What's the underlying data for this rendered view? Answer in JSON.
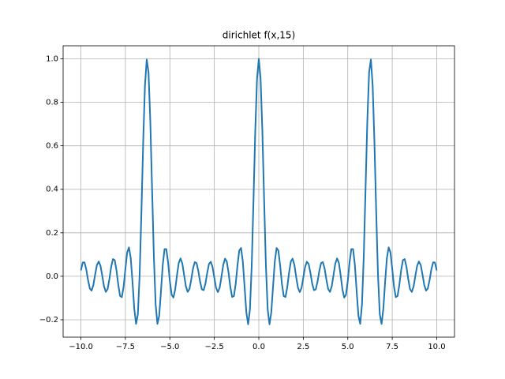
{
  "chart_data": {
    "type": "line",
    "title": "dirichlet f(x,15)",
    "x": [
      -10.0,
      -9.9,
      -9.8,
      -9.7,
      -9.6,
      -9.5,
      -9.4,
      -9.3,
      -9.2,
      -9.1,
      -9.0,
      -8.9,
      -8.8,
      -8.7,
      -8.6,
      -8.5,
      -8.4,
      -8.3,
      -8.2,
      -8.1,
      -8.0,
      -7.9,
      -7.8,
      -7.7,
      -7.6,
      -7.5,
      -7.4,
      -7.3,
      -7.2,
      -7.1,
      -7.0,
      -6.9,
      -6.8,
      -6.7,
      -6.6,
      -6.5,
      -6.4,
      -6.3,
      -6.2,
      -6.1,
      -6.0,
      -5.9,
      -5.8,
      -5.7,
      -5.6,
      -5.5,
      -5.4,
      -5.3,
      -5.2,
      -5.1,
      -5.0,
      -4.9,
      -4.8,
      -4.7,
      -4.6,
      -4.5,
      -4.4,
      -4.3,
      -4.2,
      -4.1,
      -4.0,
      -3.9,
      -3.8,
      -3.7,
      -3.6,
      -3.5,
      -3.4,
      -3.3,
      -3.2,
      -3.1,
      -3.0,
      -2.9,
      -2.8,
      -2.7,
      -2.6,
      -2.5,
      -2.4,
      -2.3,
      -2.2,
      -2.1,
      -2.0,
      -1.9,
      -1.8,
      -1.7,
      -1.6,
      -1.5,
      -1.4,
      -1.3,
      -1.2,
      -1.1,
      -1.0,
      -0.9,
      -0.8,
      -0.7,
      -0.6,
      -0.5,
      -0.4,
      -0.3,
      -0.2,
      -0.1,
      0.0,
      0.1,
      0.2,
      0.3,
      0.4,
      0.5,
      0.6,
      0.7,
      0.8,
      0.9,
      1.0,
      1.1,
      1.2,
      1.3,
      1.4,
      1.5,
      1.6,
      1.7,
      1.8,
      1.9,
      2.0,
      2.1,
      2.2,
      2.3,
      2.4,
      2.5,
      2.6,
      2.7,
      2.8,
      2.9,
      3.0,
      3.1,
      3.2,
      3.3,
      3.4,
      3.5,
      3.6,
      3.7,
      3.8,
      3.9,
      4.0,
      4.1,
      4.2,
      4.3,
      4.4,
      4.5,
      4.6,
      4.7,
      4.8,
      4.9,
      5.0,
      5.1,
      5.2,
      5.3,
      5.4,
      5.5,
      5.6,
      5.7,
      5.8,
      5.9,
      6.0,
      6.1,
      6.2,
      6.3,
      6.4,
      6.5,
      6.6,
      6.7,
      6.8,
      6.9,
      7.0,
      7.1,
      7.2,
      7.3,
      7.4,
      7.5,
      7.6,
      7.7,
      7.8,
      7.9,
      8.0,
      8.1,
      8.2,
      8.3,
      8.4,
      8.5,
      8.6,
      8.7,
      8.8,
      8.9,
      9.0,
      9.1,
      9.2,
      9.3,
      9.4,
      9.5,
      9.6,
      9.7,
      9.8,
      9.9,
      10.0
    ],
    "series": [
      {
        "color": "#1f77b4",
        "values": [
          0.027,
          0.063,
          0.064,
          0.032,
          -0.017,
          -0.056,
          -0.066,
          -0.04,
          0.008,
          0.052,
          0.068,
          0.048,
          0.002,
          -0.047,
          -0.072,
          -0.059,
          -0.013,
          0.043,
          0.079,
          0.074,
          0.027,
          -0.039,
          -0.09,
          -0.096,
          -0.048,
          0.034,
          0.109,
          0.133,
          0.084,
          -0.026,
          -0.15,
          -0.219,
          -0.175,
          0.005,
          0.292,
          0.615,
          0.877,
          0.997,
          0.938,
          0.715,
          0.402,
          0.093,
          -0.129,
          -0.219,
          -0.182,
          -0.069,
          0.052,
          0.125,
          0.125,
          0.063,
          -0.022,
          -0.085,
          -0.098,
          -0.06,
          0.005,
          0.062,
          0.082,
          0.059,
          0.006,
          -0.046,
          -0.072,
          -0.059,
          -0.016,
          0.035,
          0.065,
          0.061,
          0.024,
          -0.025,
          -0.06,
          -0.064,
          -0.033,
          0.016,
          0.057,
          0.067,
          0.042,
          -0.007,
          -0.054,
          -0.073,
          -0.053,
          -0.003,
          0.052,
          0.081,
          0.068,
          0.016,
          -0.05,
          -0.095,
          -0.091,
          -0.035,
          0.049,
          0.118,
          0.13,
          0.069,
          -0.048,
          -0.167,
          -0.221,
          -0.154,
          0.047,
          0.347,
          0.666,
          0.909,
          1,
          0.909,
          0.666,
          0.347,
          0.047,
          -0.154,
          -0.221,
          -0.167,
          -0.048,
          0.069,
          0.13,
          0.118,
          0.049,
          -0.035,
          -0.091,
          -0.095,
          -0.05,
          0.016,
          0.068,
          0.081,
          0.052,
          -0.003,
          -0.053,
          -0.073,
          -0.054,
          -0.007,
          0.042,
          0.067,
          0.057,
          0.016,
          -0.033,
          -0.064,
          -0.06,
          -0.025,
          0.024,
          0.061,
          0.065,
          0.035,
          -0.016,
          -0.059,
          -0.072,
          -0.046,
          0.006,
          0.059,
          0.082,
          0.062,
          0.005,
          -0.06,
          -0.098,
          -0.085,
          -0.022,
          0.063,
          0.125,
          0.125,
          0.052,
          -0.069,
          -0.182,
          -0.219,
          -0.129,
          0.093,
          0.402,
          0.715,
          0.938,
          0.997,
          0.877,
          0.615,
          0.292,
          0.005,
          -0.175,
          -0.219,
          -0.15,
          -0.026,
          0.084,
          0.133,
          0.109,
          0.034,
          -0.048,
          -0.096,
          -0.09,
          -0.039,
          0.027,
          0.074,
          0.079,
          0.043,
          -0.013,
          -0.059,
          -0.072,
          -0.047,
          0.002,
          0.048,
          0.068,
          0.052,
          0.008,
          -0.04,
          -0.066,
          -0.056,
          -0.017,
          0.032,
          0.064,
          0.063,
          0.027
        ]
      }
    ],
    "xlim": [
      -11,
      11
    ],
    "xticks": [
      {
        "value": -10,
        "label": "−10.0"
      },
      {
        "value": -7.5,
        "label": "−7.5"
      },
      {
        "value": -5,
        "label": "−5.0"
      },
      {
        "value": -2.5,
        "label": "−2.5"
      },
      {
        "value": 0,
        "label": "0.0"
      },
      {
        "value": 2.5,
        "label": "2.5"
      },
      {
        "value": 5,
        "label": "5.0"
      },
      {
        "value": 7.5,
        "label": "7.5"
      },
      {
        "value": 10,
        "label": "10.0"
      }
    ],
    "ylim": [
      -0.28,
      1.06
    ],
    "yticks": [
      {
        "value": -0.2,
        "label": "−0.2"
      },
      {
        "value": 0,
        "label": "0.0"
      },
      0.2,
      0.4,
      0.6,
      0.8,
      {
        "value": 1,
        "label": "1.0"
      }
    ],
    "grid": true
  }
}
